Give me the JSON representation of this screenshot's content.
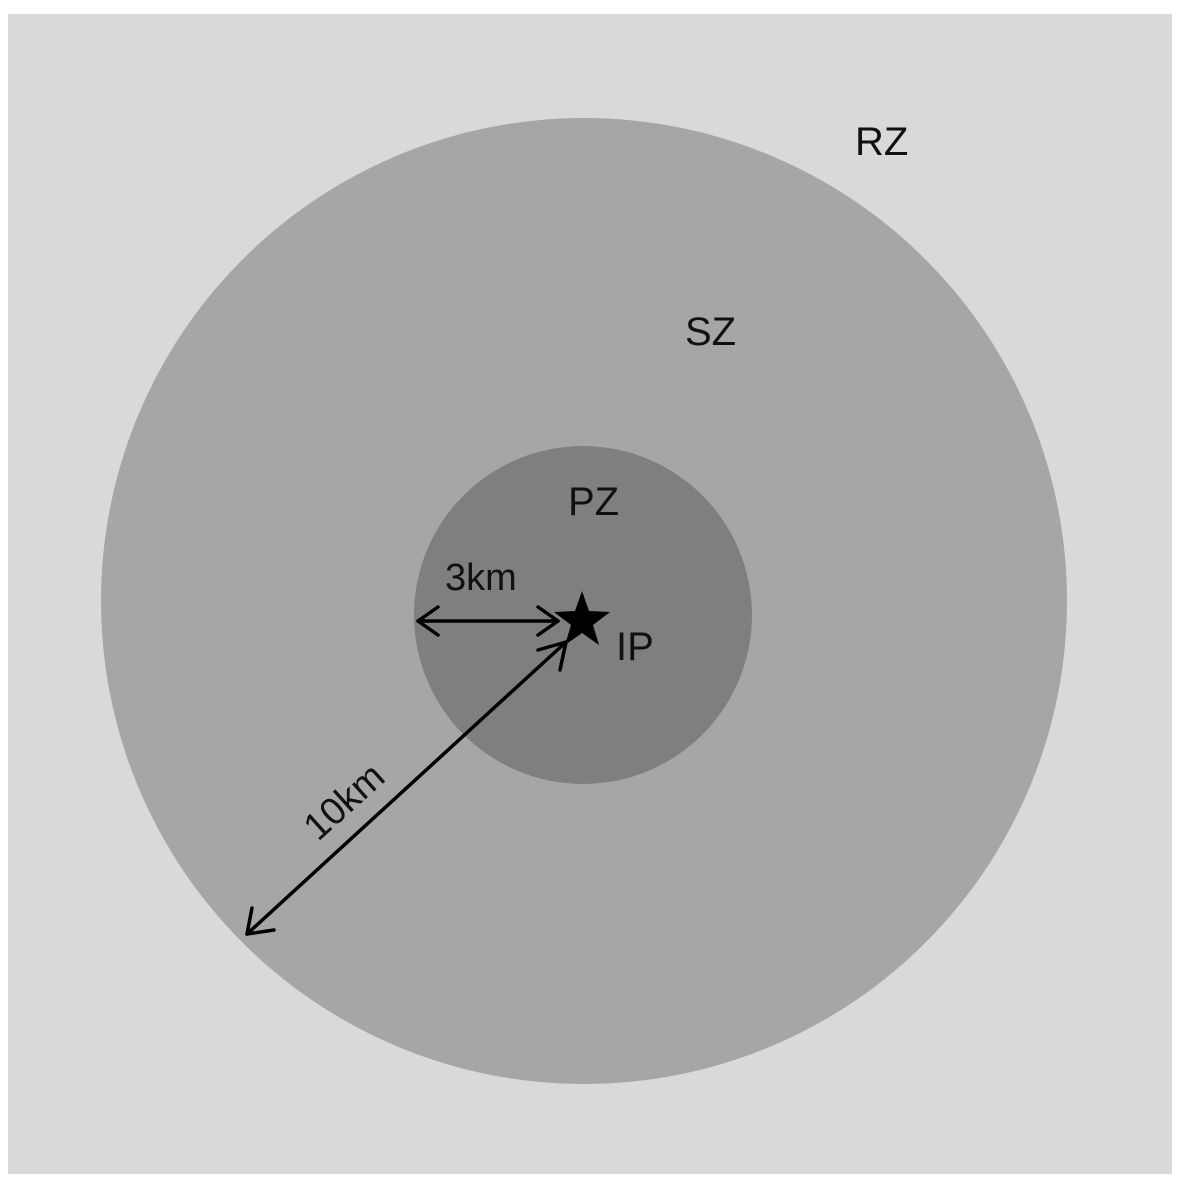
{
  "zones": [
    {
      "id": "rz",
      "label": "RZ",
      "color": "#d9d9d9"
    },
    {
      "id": "sz",
      "label": "SZ",
      "color": "#a6a6a6"
    },
    {
      "id": "pz",
      "label": "PZ",
      "color": "#7f7f7f"
    }
  ],
  "infected_premises": {
    "label": "IP",
    "icon": "star-icon",
    "color": "#000000"
  },
  "distances": {
    "pz_radius_label": "3km",
    "sz_radius_label": "10km"
  },
  "colors": {
    "frame": "#ffffff",
    "arrow": "#000000",
    "text": "#111111"
  }
}
